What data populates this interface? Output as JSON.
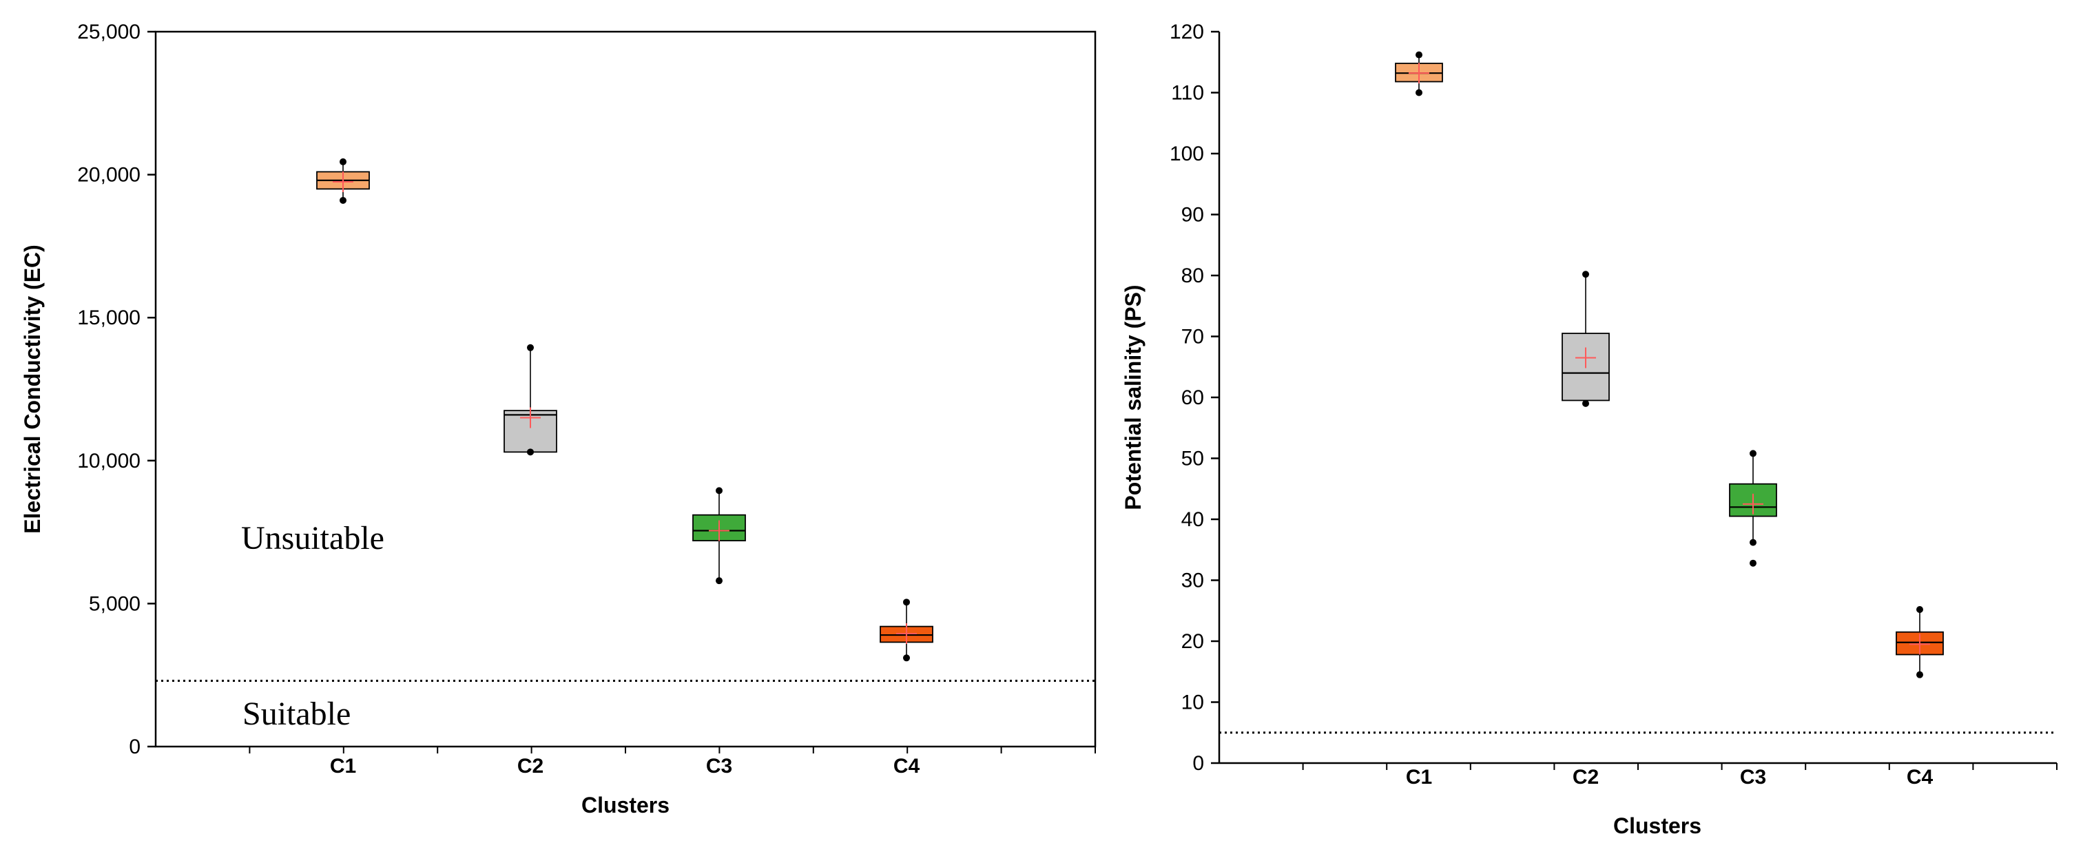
{
  "chart_data": [
    {
      "type": "box",
      "xlabel": "Clusters",
      "ylabel": "Electrical Conductivity (EC)",
      "ylim": [
        0,
        25000
      ],
      "yticks": [
        {
          "value": 0,
          "label": "0"
        },
        {
          "value": 5000,
          "label": "5,000"
        },
        {
          "value": 10000,
          "label": "10,000"
        },
        {
          "value": 15000,
          "label": "15,000"
        },
        {
          "value": 20000,
          "label": "20,000"
        },
        {
          "value": 25000,
          "label": "25,000"
        }
      ],
      "categories": [
        "C1",
        "C2",
        "C3",
        "C4"
      ],
      "boxes": [
        {
          "name": "C1",
          "min": 19100,
          "q1": 19500,
          "median": 19800,
          "q3": 20100,
          "max": 20450,
          "mean": 19750,
          "color": "#f6a76b"
        },
        {
          "name": "C2",
          "min": 10300,
          "q1": 10300,
          "median": 11600,
          "q3": 11750,
          "max": 13950,
          "mean": 11500,
          "color": "#c7c7c7"
        },
        {
          "name": "C3",
          "min": 5800,
          "q1": 7200,
          "median": 7550,
          "q3": 8100,
          "max": 8950,
          "mean": 7550,
          "color": "#3faa3a"
        },
        {
          "name": "C4",
          "min": 3100,
          "q1": 3650,
          "median": 3900,
          "q3": 4200,
          "max": 5050,
          "mean": 3950,
          "color": "#f15a0f"
        }
      ],
      "threshold": 2300,
      "annotations": [
        "Unsuitable",
        "Suitable"
      ]
    },
    {
      "type": "box",
      "xlabel": "Clusters",
      "ylabel": "Potential salinity (PS)",
      "ylim": [
        0,
        120
      ],
      "yticks": [
        {
          "value": 0,
          "label": "0"
        },
        {
          "value": 10,
          "label": "10"
        },
        {
          "value": 20,
          "label": "20"
        },
        {
          "value": 30,
          "label": "30"
        },
        {
          "value": 40,
          "label": "40"
        },
        {
          "value": 50,
          "label": "50"
        },
        {
          "value": 60,
          "label": "60"
        },
        {
          "value": 70,
          "label": "70"
        },
        {
          "value": 80,
          "label": "80"
        },
        {
          "value": 90,
          "label": "90"
        },
        {
          "value": 100,
          "label": "100"
        },
        {
          "value": 110,
          "label": "110"
        },
        {
          "value": 120,
          "label": "120"
        }
      ],
      "categories": [
        "C1",
        "C2",
        "C3",
        "C4"
      ],
      "boxes": [
        {
          "name": "C1",
          "min": 110,
          "q1": 111.8,
          "median": 113.2,
          "q3": 114.8,
          "max": 116.2,
          "mean": 113.2,
          "color": "#f6a76b"
        },
        {
          "name": "C2",
          "min": 59,
          "q1": 59.5,
          "median": 64,
          "q3": 70.5,
          "max": 80.2,
          "mean": 66.5,
          "color": "#c7c7c7"
        },
        {
          "name": "C3",
          "min": 36.2,
          "q1": 40.5,
          "median": 42,
          "q3": 45.8,
          "max": 50.8,
          "mean": 42.5,
          "outliers": [
            32.8
          ],
          "color": "#3faa3a"
        },
        {
          "name": "C4",
          "min": 14.5,
          "q1": 17.8,
          "median": 19.8,
          "q3": 21.5,
          "max": 25.2,
          "mean": 19.5,
          "color": "#f15a0f"
        }
      ],
      "threshold": 5
    }
  ]
}
